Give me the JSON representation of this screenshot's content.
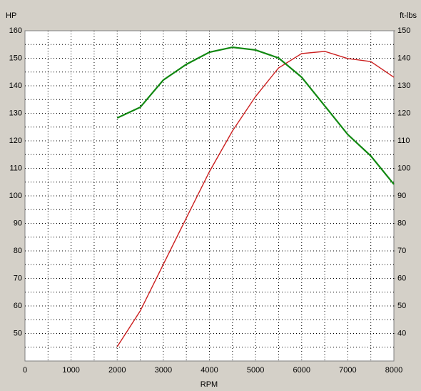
{
  "chart_data": {
    "type": "line",
    "y_label": "HP",
    "y2_label": "ft-lbs",
    "x_label": "RPM",
    "x": [
      2000,
      2500,
      3000,
      3500,
      4000,
      4500,
      5000,
      5500,
      6000,
      6500,
      7000,
      7500,
      8000
    ],
    "series": [
      {
        "color": "#cc2020",
        "values": [
          45.2,
          58.2,
          75.1,
          92,
          108.8,
          123.6,
          136.1,
          146.5,
          151.7,
          152.5,
          149.9,
          148.8,
          143.1
        ]
      },
      {
        "color": "#118811",
        "axis": "y2",
        "values": [
          118.3,
          122.2,
          132.1,
          137.8,
          142.2,
          144.0,
          143.0,
          140.1,
          133.1,
          122.7,
          112.3,
          104.5,
          94.2
        ]
      }
    ],
    "xlim": [
      0,
      8000
    ],
    "xticks": [
      0,
      1000,
      2000,
      3000,
      4000,
      5000,
      6000,
      7000,
      8000
    ],
    "ylim": [
      40,
      160
    ],
    "yticks": [
      50,
      60,
      70,
      80,
      90,
      100,
      110,
      120,
      130,
      140,
      150,
      160
    ],
    "y2lim": [
      30,
      150
    ],
    "y2ticks": [
      40,
      50,
      60,
      70,
      80,
      90,
      100,
      110,
      120,
      130,
      140,
      150
    ],
    "grid": true
  }
}
